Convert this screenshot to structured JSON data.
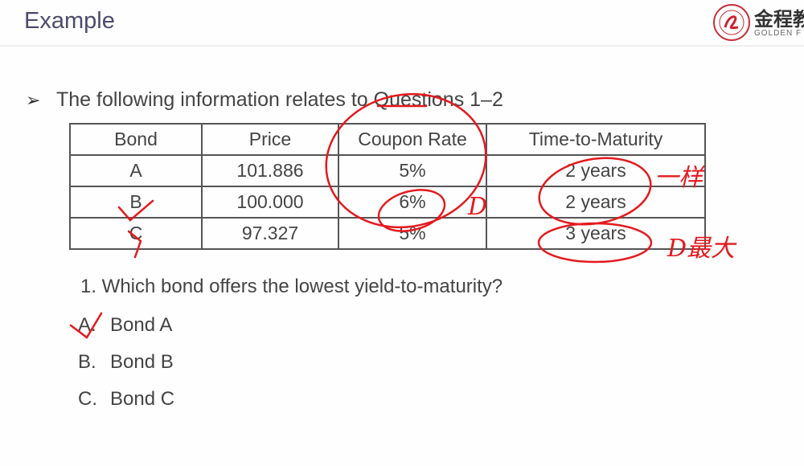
{
  "header": {
    "title": "Example",
    "logo": {
      "cn": "金程教",
      "en": "GOLDEN F"
    }
  },
  "intro": {
    "bullet_icon": "arrow-bullet-icon",
    "text": "The following information relates to Questions 1–2"
  },
  "table": {
    "headers": [
      "Bond",
      "Price",
      "Coupon Rate",
      "Time-to-Maturity"
    ],
    "rows": [
      [
        "A",
        "101.886",
        "5%",
        "2 years"
      ],
      [
        "B",
        "100.000",
        "6%",
        "2 years"
      ],
      [
        "C",
        "97.327",
        "5%",
        "3 years"
      ]
    ]
  },
  "question": {
    "text": "1. Which bond offers the lowest yield-to-maturity?",
    "options": [
      {
        "label": "A.",
        "text": "Bond A"
      },
      {
        "label": "B.",
        "text": "Bond B"
      },
      {
        "label": "C.",
        "text": "Bond C"
      }
    ]
  },
  "annotations": {
    "color": "#e5191e",
    "same": "一样",
    "d_coupon": "D",
    "d_largest": "D最大"
  }
}
